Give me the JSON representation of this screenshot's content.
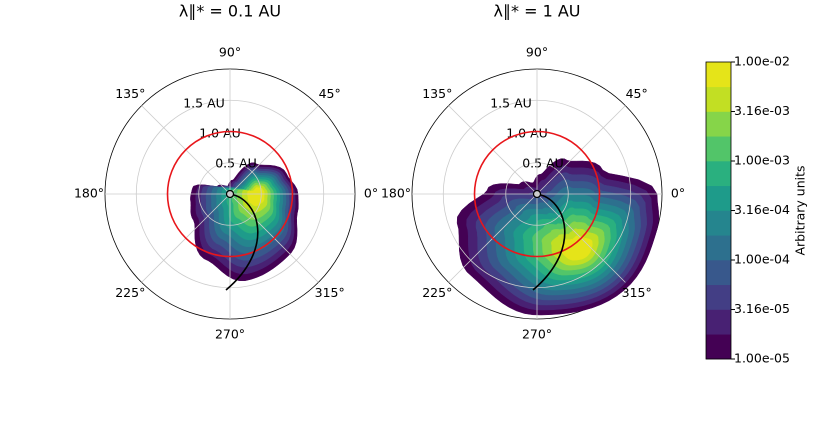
{
  "chart_data": [
    {
      "type": "polar",
      "title": "λ∥* = 0.1 AU",
      "thetaticks": [
        {
          "value": 0,
          "label": "0°"
        },
        {
          "value": 45,
          "label": "45°"
        },
        {
          "value": 90,
          "label": "90°"
        },
        {
          "value": 135,
          "label": "135°"
        },
        {
          "value": 180,
          "label": "180°"
        },
        {
          "value": 225,
          "label": "225°"
        },
        {
          "value": 270,
          "label": "270°"
        },
        {
          "value": 315,
          "label": "315°"
        }
      ],
      "rlim": [
        0,
        2
      ],
      "rticks": [
        {
          "value": 0.5,
          "label": "0.5 AU"
        },
        {
          "value": 1.0,
          "label": "1.0 AU"
        },
        {
          "value": 1.5,
          "label": "1.5 AU"
        }
      ],
      "circle_radius": 1,
      "circle_color": "#e8161b",
      "grid": true
    },
    {
      "type": "polar",
      "title": "λ∥* = 1 AU",
      "thetaticks": [
        {
          "value": 0,
          "label": "0°"
        },
        {
          "value": 45,
          "label": "45°"
        },
        {
          "value": 90,
          "label": "90°"
        },
        {
          "value": 135,
          "label": "135°"
        },
        {
          "value": 180,
          "label": "180°"
        },
        {
          "value": 225,
          "label": "225°"
        },
        {
          "value": 270,
          "label": "270°"
        },
        {
          "value": 315,
          "label": "315°"
        }
      ],
      "rlim": [
        0,
        2
      ],
      "rticks": [
        {
          "value": 0.5,
          "label": "0.5 AU"
        },
        {
          "value": 1.0,
          "label": "1.0 AU"
        },
        {
          "value": 1.5,
          "label": "1.5 AU"
        }
      ],
      "circle_radius": 1,
      "circle_color": "#e8161b",
      "grid": true
    },
    {
      "type": "colorbar",
      "label": "Arbitrary units",
      "clim": [
        1e-05,
        0.01
      ],
      "log": true,
      "ticks": [
        {
          "value": 1e-05,
          "label": "1.00e-05"
        },
        {
          "value": 3.16e-05,
          "label": "3.16e-05"
        },
        {
          "value": 0.0001,
          "label": "1.00e-04"
        },
        {
          "value": 0.000316,
          "label": "3.16e-04"
        },
        {
          "value": 0.001,
          "label": "1.00e-03"
        },
        {
          "value": 0.00316,
          "label": "3.16e-03"
        },
        {
          "value": 0.01,
          "label": "1.00e-02"
        }
      ],
      "colors": [
        "#440154",
        "#482173",
        "#433e85",
        "#38588c",
        "#2d708e",
        "#25858e",
        "#1e9b8a",
        "#2ab07f",
        "#52c569",
        "#86d549",
        "#c2df23",
        "#e5e419"
      ]
    }
  ]
}
